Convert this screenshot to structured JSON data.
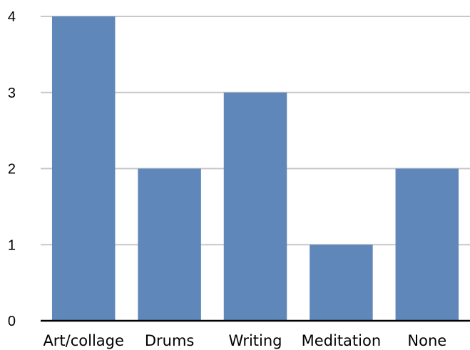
{
  "chart_data": {
    "type": "bar",
    "title": "",
    "xlabel": "",
    "ylabel": "",
    "categories": [
      "Art/collage",
      "Drums",
      "Writing",
      "Meditation",
      "None"
    ],
    "values": [
      4,
      2,
      3,
      1,
      2
    ],
    "ylim": [
      0,
      4
    ],
    "yticks": [
      "0",
      "1",
      "2",
      "3",
      "4"
    ],
    "grid": true,
    "legend": "none",
    "colors": {
      "bar": "#5f87ba",
      "grid": "#c8c8c8",
      "axis": "#000000",
      "text": "#000000"
    }
  }
}
